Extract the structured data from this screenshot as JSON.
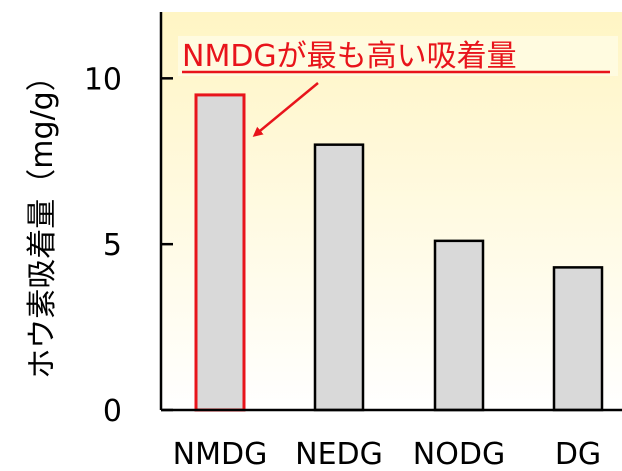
{
  "chart_data": {
    "type": "bar",
    "categories": [
      "NMDG",
      "NEDG",
      "NODG",
      "DG"
    ],
    "values": [
      9.5,
      8.0,
      5.1,
      4.3
    ],
    "title": "",
    "xlabel": "",
    "ylabel": "ホウ素吸着量（mg/g）",
    "ylim": [
      0,
      12
    ],
    "yticks": [
      0,
      5,
      10
    ],
    "grid": false,
    "highlight_index": 0,
    "annotation": "NMDGが最も高い吸着量",
    "colors": {
      "bar_fill": "#d9d9d9",
      "bar_stroke": "#000000",
      "highlight_stroke": "#e8141b",
      "annotation_color": "#e8141b",
      "annotation_bg": "#fffbe0",
      "plot_bg_top": "#fff5c4",
      "plot_bg_bottom": "#ffffff"
    }
  }
}
